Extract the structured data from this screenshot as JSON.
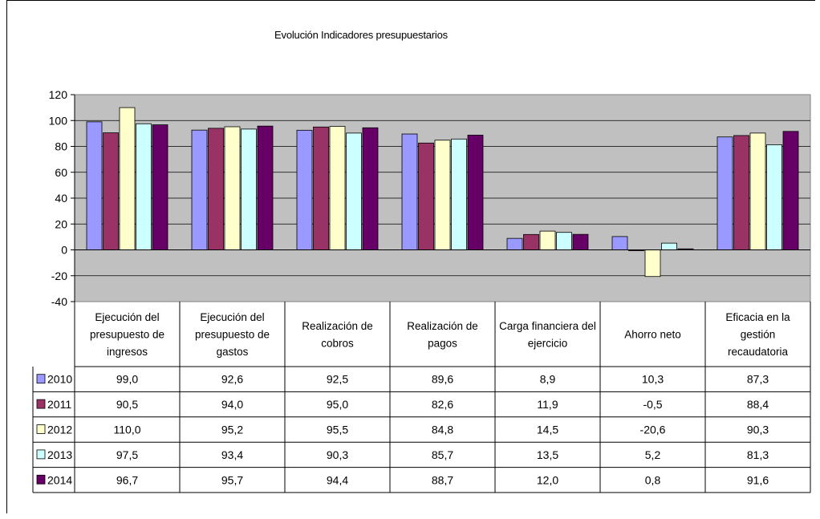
{
  "chart_data": {
    "type": "bar",
    "title": "Evolución Indicadores presupuestarios",
    "categories": [
      "Ejecución del presupuesto de ingresos",
      "Ejecución del presupuesto de gastos",
      "Realización de cobros",
      "Realización de pagos",
      "Carga financiera del ejercicio",
      "Ahorro neto",
      "Eficacia en la gestión recaudatoria"
    ],
    "category_lines": [
      [
        "Ejecución del",
        "presupuesto de",
        "ingresos"
      ],
      [
        "Ejecución del",
        "presupuesto de",
        "gastos"
      ],
      [
        "Realización de",
        "cobros"
      ],
      [
        "Realización de",
        "pagos"
      ],
      [
        "Carga financiera del",
        "ejercicio"
      ],
      [
        "Ahorro neto"
      ],
      [
        "Eficacia en la",
        "gestión",
        "recaudatoria"
      ]
    ],
    "series": [
      {
        "name": "2010",
        "color": "#9999ff",
        "values": [
          99.0,
          92.6,
          92.5,
          89.6,
          8.9,
          10.3,
          87.3
        ],
        "labels": [
          "99,0",
          "92,6",
          "92,5",
          "89,6",
          "8,9",
          "10,3",
          "87,3"
        ]
      },
      {
        "name": "2011",
        "color": "#993366",
        "values": [
          90.5,
          94.0,
          95.0,
          82.6,
          11.9,
          -0.5,
          88.4
        ],
        "labels": [
          "90,5",
          "94,0",
          "95,0",
          "82,6",
          "11,9",
          "-0,5",
          "88,4"
        ]
      },
      {
        "name": "2012",
        "color": "#ffffcc",
        "values": [
          110.0,
          95.2,
          95.5,
          84.8,
          14.5,
          -20.6,
          90.3
        ],
        "labels": [
          "110,0",
          "95,2",
          "95,5",
          "84,8",
          "14,5",
          "-20,6",
          "90,3"
        ]
      },
      {
        "name": "2013",
        "color": "#ccffff",
        "values": [
          97.5,
          93.4,
          90.3,
          85.7,
          13.5,
          5.2,
          81.3
        ],
        "labels": [
          "97,5",
          "93,4",
          "90,3",
          "85,7",
          "13,5",
          "5,2",
          "81,3"
        ]
      },
      {
        "name": "2014",
        "color": "#660066",
        "values": [
          96.7,
          95.7,
          94.4,
          88.7,
          12.0,
          0.8,
          91.6
        ],
        "labels": [
          "96,7",
          "95,7",
          "94,4",
          "88,7",
          "12,0",
          "0,8",
          "91,6"
        ]
      }
    ],
    "ylim": [
      -40,
      120
    ],
    "yticks": [
      "120",
      "100",
      "80",
      "60",
      "40",
      "20",
      "0",
      "-20",
      "-40"
    ],
    "ytick_values": [
      120,
      100,
      80,
      60,
      40,
      20,
      0,
      -20,
      -40
    ],
    "grid": true,
    "plot_background": "#c0c0c0",
    "legend": "data-table"
  }
}
